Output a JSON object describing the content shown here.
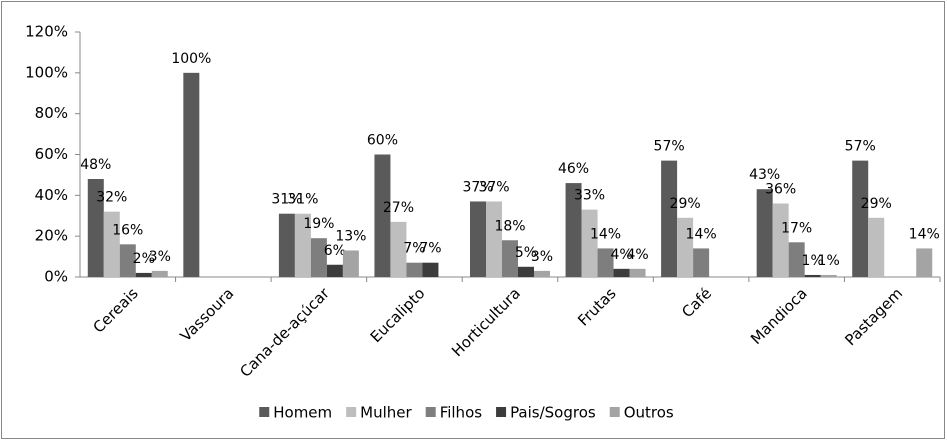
{
  "chart_data": {
    "type": "bar",
    "categories": [
      "Cereais",
      "Vassoura",
      "Cana-de-açúcar",
      "Eucalipto",
      "Horticultura",
      "Frutas",
      "Café",
      "Mandioca",
      "Pastagem"
    ],
    "series": [
      {
        "name": "Homem",
        "color": "#5a5a5a",
        "values": [
          48,
          100,
          31,
          60,
          37,
          46,
          57,
          43,
          57
        ],
        "value_labels": [
          "48%",
          "100%",
          "31%",
          "60%",
          "37%",
          "46%",
          "57%",
          "43%",
          "57%"
        ]
      },
      {
        "name": "Mulher",
        "color": "#bebebe",
        "values": [
          32,
          null,
          31,
          27,
          37,
          33,
          29,
          36,
          29
        ],
        "value_labels": [
          "32%",
          null,
          "31%",
          "27%",
          "37%",
          "33%",
          "29%",
          "36%",
          "29%"
        ]
      },
      {
        "name": "Filhos",
        "color": "#7e7e7e",
        "values": [
          16,
          null,
          19,
          7,
          18,
          14,
          14,
          17,
          null
        ],
        "value_labels": [
          "16%",
          null,
          "19%",
          "7%",
          "18%",
          "14%",
          "14%",
          "17%",
          null
        ]
      },
      {
        "name": "Pais/Sogros",
        "color": "#3c3c3c",
        "values": [
          2,
          null,
          6,
          7,
          5,
          4,
          null,
          1,
          null
        ],
        "value_labels": [
          "2%",
          null,
          "6%",
          "7%",
          "5%",
          "4%",
          null,
          "1%",
          null
        ]
      },
      {
        "name": "Outros",
        "color": "#a4a4a4",
        "values": [
          3,
          null,
          13,
          null,
          3,
          4,
          null,
          1,
          14
        ],
        "value_labels": [
          "3%",
          null,
          "13%",
          null,
          "3%",
          "4%",
          null,
          "1%",
          "14%"
        ]
      }
    ],
    "ylim": [
      0,
      120
    ],
    "yticks": [
      {
        "value": 0,
        "label": "0%"
      },
      {
        "value": 20,
        "label": "20%"
      },
      {
        "value": 40,
        "label": "40%"
      },
      {
        "value": 60,
        "label": "60%"
      },
      {
        "value": 80,
        "label": "80%"
      },
      {
        "value": 100,
        "label": "100%"
      },
      {
        "value": 120,
        "label": "120%"
      }
    ],
    "grid": false
  }
}
